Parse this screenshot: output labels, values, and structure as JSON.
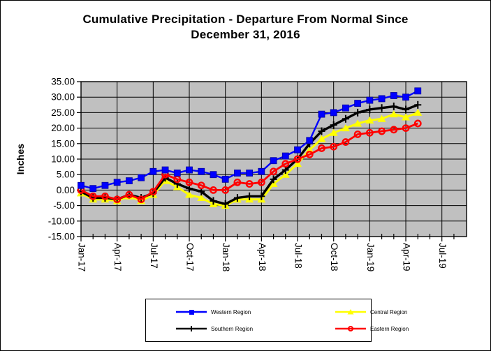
{
  "page": {
    "background": "#ffffff",
    "border_color": "#000000"
  },
  "title": {
    "line1": "Cumulative Precipitation - Departure From Normal Since",
    "line2": "December 31, 2016"
  },
  "chart_data": {
    "type": "line",
    "title": "Cumulative Precipitation - Departure From Normal Since December 31, 2016",
    "xlabel": "",
    "ylabel": "Inches",
    "ylim": [
      -15,
      35
    ],
    "y_tick_step": 5,
    "y_tick_labels": [
      "35.00",
      "30.00",
      "25.00",
      "20.00",
      "15.00",
      "10.00",
      "5.00",
      "0.00",
      "-5.00",
      "-10.00",
      "-15.00"
    ],
    "x_tick_labels": [
      "Jan-17",
      "Apr-17",
      "Jul-17",
      "Oct-17",
      "Jan-18",
      "Apr-18",
      "Jul-18",
      "Oct-18",
      "Jan-19",
      "Apr-19",
      "Jul-19"
    ],
    "categories": [
      "Jan-17",
      "Feb-17",
      "Mar-17",
      "Apr-17",
      "May-17",
      "Jun-17",
      "Jul-17",
      "Aug-17",
      "Sep-17",
      "Oct-17",
      "Nov-17",
      "Dec-17",
      "Jan-18",
      "Feb-18",
      "Mar-18",
      "Apr-18",
      "May-18",
      "Jun-18",
      "Jul-18",
      "Aug-18",
      "Sep-18",
      "Oct-18",
      "Nov-18",
      "Dec-18",
      "Jan-19",
      "Feb-19",
      "Mar-19",
      "Apr-19",
      "May-19"
    ],
    "grid": true,
    "plot_background": "#c0c0c0",
    "gridline_color": "#000000",
    "legend_position": "bottom",
    "series": [
      {
        "name": "Western Region",
        "color": "#0000ff",
        "marker": "square",
        "values": [
          1.5,
          0.5,
          1.5,
          2.5,
          3.0,
          4.0,
          6.0,
          6.5,
          5.5,
          6.5,
          6.0,
          5.0,
          3.5,
          5.5,
          5.5,
          6.0,
          9.5,
          11.0,
          13.0,
          16.0,
          24.5,
          25.0,
          26.5,
          28.0,
          29.0,
          29.5,
          30.5,
          30.0,
          32.0
        ]
      },
      {
        "name": "Central Region",
        "color": "#ffff00",
        "marker": "triangle",
        "values": [
          -1.0,
          -3.0,
          -3.0,
          -3.5,
          -2.0,
          -3.5,
          -1.5,
          3.0,
          1.0,
          -1.5,
          -2.5,
          -4.5,
          -5.0,
          -3.0,
          -3.0,
          -3.0,
          2.0,
          5.0,
          8.5,
          13.0,
          16.5,
          18.5,
          20.0,
          21.5,
          22.5,
          23.0,
          24.5,
          23.5,
          25.0
        ]
      },
      {
        "name": "Southern Region",
        "color": "#000000",
        "marker": "plus",
        "values": [
          -0.5,
          -2.5,
          -2.5,
          -3.0,
          -1.5,
          -2.5,
          -1.0,
          4.0,
          2.0,
          0.5,
          -0.5,
          -3.5,
          -4.5,
          -2.5,
          -2.0,
          -2.0,
          3.5,
          6.5,
          10.0,
          15.0,
          19.0,
          21.0,
          23.0,
          25.0,
          26.0,
          26.5,
          27.0,
          26.0,
          27.5
        ]
      },
      {
        "name": "Eastern Region",
        "color": "#ff0000",
        "marker": "circle-open",
        "values": [
          0.0,
          -2.0,
          -2.0,
          -3.0,
          -1.5,
          -3.0,
          -0.5,
          5.0,
          3.5,
          2.5,
          1.5,
          0.0,
          0.0,
          2.5,
          2.0,
          2.5,
          6.0,
          8.5,
          10.0,
          11.5,
          13.5,
          14.0,
          15.5,
          18.0,
          18.5,
          19.0,
          19.5,
          20.0,
          21.5
        ]
      }
    ]
  }
}
